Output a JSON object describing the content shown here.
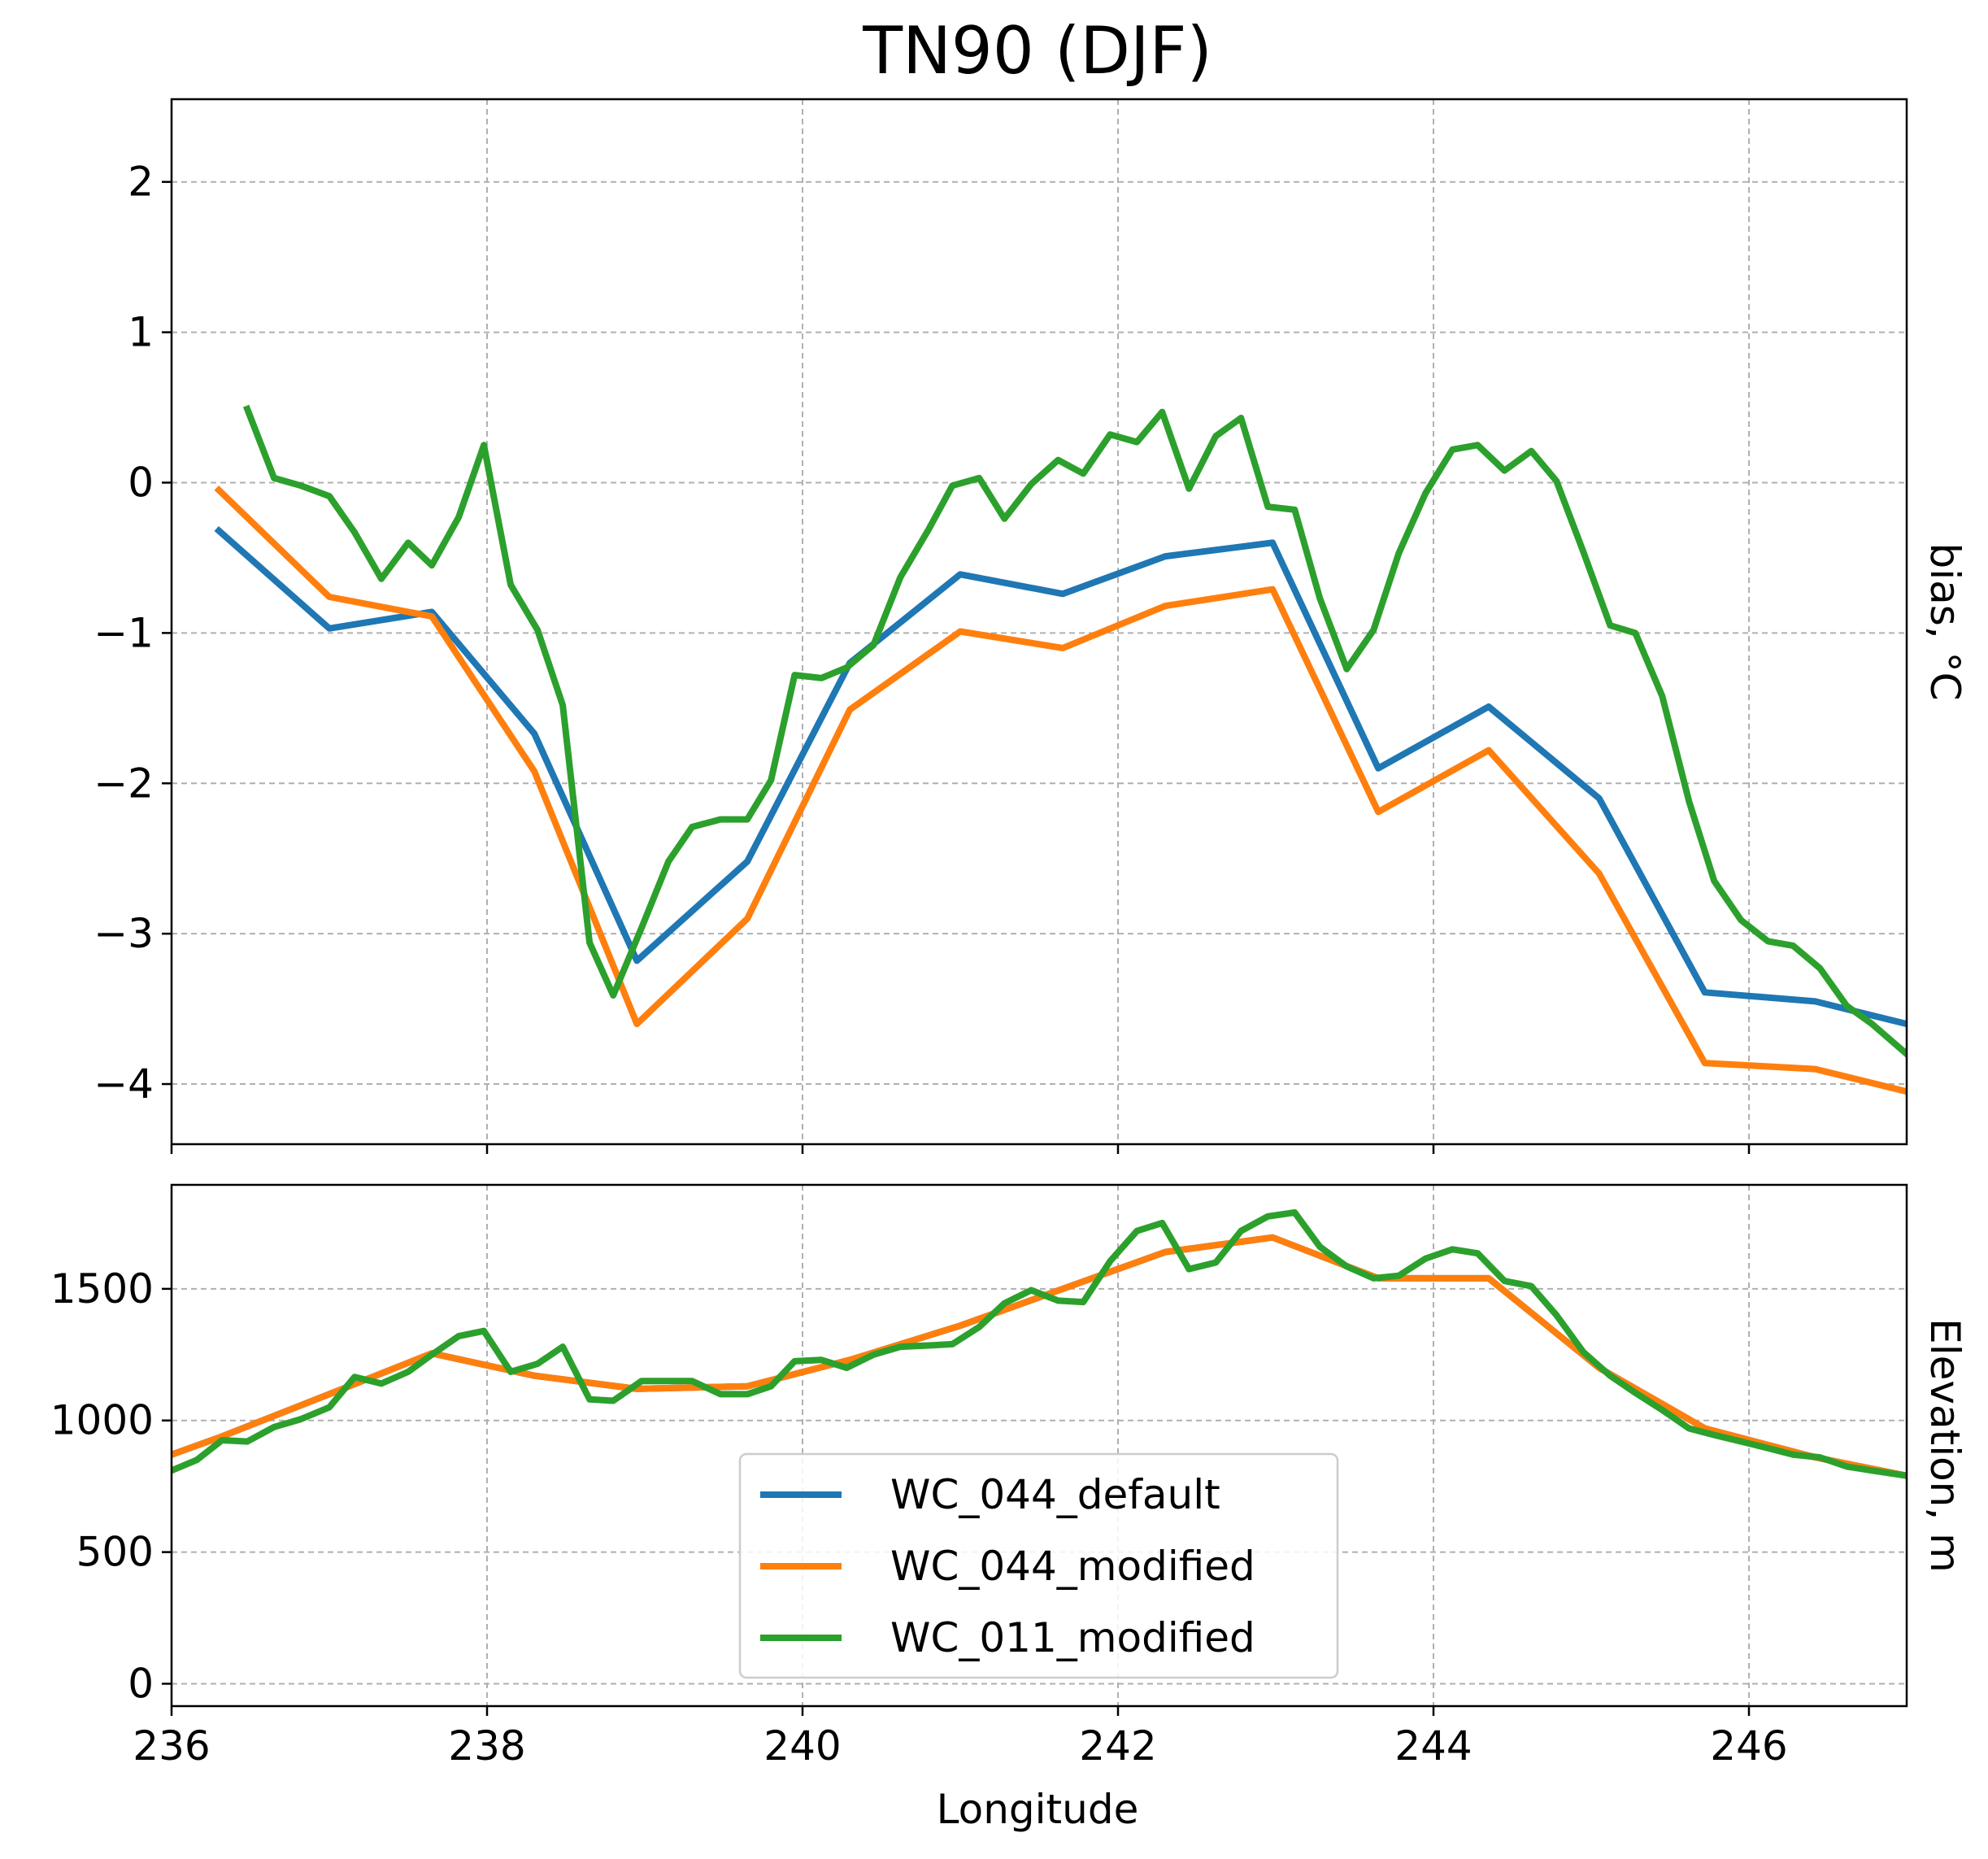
{
  "chart_data": {
    "type": "line",
    "title": "TN90 (DJF)",
    "xlabel": "Longitude",
    "xlim": [
      236,
      247
    ],
    "xticks": [
      236,
      238,
      240,
      242,
      244,
      246
    ],
    "grid": true,
    "legend_location": "lower-center",
    "series_style": [
      {
        "name": "WC_044_default",
        "color": "#1f77b4"
      },
      {
        "name": "WC_044_modified",
        "color": "#ff7f0e"
      },
      {
        "name": "WC_011_modified",
        "color": "#2ca02c"
      }
    ],
    "panels": [
      {
        "ylabel": "bias, °C",
        "ylim": [
          -4.4,
          2.55
        ],
        "yticks": [
          -4,
          -3,
          -2,
          -1,
          0,
          1,
          2
        ],
        "ytick_labels": [
          "−4",
          "−3",
          "−2",
          "−1",
          "0",
          "1",
          "2"
        ],
        "series": [
          {
            "name": "WC_044_default",
            "x": [
              236.3,
              237.0,
              237.65,
              238.3,
              238.95,
              239.65,
              240.3,
              241.0,
              241.65,
              242.3,
              242.98,
              243.65,
              244.35,
              245.05,
              245.72,
              246.42,
              247.0
            ],
            "y": [
              -0.32,
              -0.97,
              -0.86,
              -1.67,
              -3.18,
              -2.52,
              -1.2,
              -0.61,
              -0.74,
              -0.49,
              -0.4,
              -1.9,
              -1.49,
              -2.1,
              -3.39,
              -3.45,
              -3.6
            ]
          },
          {
            "name": "WC_044_modified",
            "x": [
              236.3,
              237.0,
              237.65,
              238.3,
              238.95,
              239.65,
              240.3,
              241.0,
              241.65,
              242.3,
              242.98,
              243.65,
              244.35,
              245.05,
              245.72,
              246.42,
              247.0
            ],
            "y": [
              -0.05,
              -0.76,
              -0.89,
              -1.92,
              -3.6,
              -2.9,
              -1.51,
              -0.99,
              -1.1,
              -0.82,
              -0.71,
              -2.19,
              -1.78,
              -2.6,
              -3.86,
              -3.9,
              -4.05
            ]
          },
          {
            "name": "WC_011_modified",
            "x": [
              236.48,
              236.65,
              236.82,
              237.0,
              237.16,
              237.33,
              237.5,
              237.65,
              237.82,
              237.98,
              238.15,
              238.32,
              238.48,
              238.65,
              238.8,
              238.98,
              239.15,
              239.3,
              239.48,
              239.65,
              239.8,
              239.95,
              240.12,
              240.28,
              240.45,
              240.62,
              240.8,
              240.95,
              241.12,
              241.28,
              241.45,
              241.62,
              241.78,
              241.95,
              242.12,
              242.28,
              242.45,
              242.62,
              242.78,
              242.95,
              243.12,
              243.28,
              243.45,
              243.62,
              243.78,
              243.95,
              244.12,
              244.28,
              244.45,
              244.62,
              244.78,
              244.95,
              245.12,
              245.28,
              245.45,
              245.62,
              245.78,
              245.95,
              246.12,
              246.28,
              246.45,
              246.62,
              246.78,
              247.0
            ],
            "y": [
              0.49,
              0.03,
              -0.02,
              -0.09,
              -0.33,
              -0.64,
              -0.4,
              -0.55,
              -0.23,
              0.25,
              -0.68,
              -0.98,
              -1.48,
              -3.06,
              -3.41,
              -2.96,
              -2.52,
              -2.29,
              -2.24,
              -2.24,
              -1.98,
              -1.28,
              -1.3,
              -1.23,
              -1.08,
              -0.63,
              -0.31,
              -0.02,
              0.03,
              -0.24,
              -0.01,
              0.15,
              0.06,
              0.32,
              0.27,
              0.47,
              -0.04,
              0.31,
              0.43,
              -0.16,
              -0.18,
              -0.77,
              -1.24,
              -0.98,
              -0.47,
              -0.07,
              0.22,
              0.25,
              0.08,
              0.21,
              0.01,
              -0.46,
              -0.95,
              -1.0,
              -1.42,
              -2.12,
              -2.65,
              -2.91,
              -3.05,
              -3.08,
              -3.23,
              -3.48,
              -3.6,
              -3.8
            ]
          }
        ]
      },
      {
        "ylabel": "Elevation, m",
        "ylim": [
          -85,
          1895
        ],
        "yticks": [
          0,
          500,
          1000,
          1500
        ],
        "ytick_labels": [
          "0",
          "500",
          "1000",
          "1500"
        ],
        "series": [
          {
            "name": "WC_044_default",
            "x": [
              236.0,
              236.3,
              237.0,
              237.65,
              238.3,
              238.95,
              239.65,
              240.3,
              241.0,
              241.65,
              242.3,
              242.98,
              243.65,
              244.35,
              245.05,
              245.72,
              246.42,
              247.0
            ],
            "y": [
              870,
              935,
              1100,
              1255,
              1170,
              1120,
              1130,
              1230,
              1360,
              1500,
              1640,
              1695,
              1540,
              1540,
              1200,
              970,
              860,
              790
            ]
          },
          {
            "name": "WC_044_modified",
            "x": [
              236.0,
              236.3,
              237.0,
              237.65,
              238.3,
              238.95,
              239.65,
              240.3,
              241.0,
              241.65,
              242.3,
              242.98,
              243.65,
              244.35,
              245.05,
              245.72,
              246.42,
              247.0
            ],
            "y": [
              870,
              935,
              1100,
              1255,
              1170,
              1120,
              1130,
              1230,
              1360,
              1500,
              1640,
              1695,
              1540,
              1540,
              1200,
              970,
              860,
              790
            ]
          },
          {
            "name": "WC_011_modified",
            "x": [
              236.0,
              236.16,
              236.32,
              236.48,
              236.65,
              236.82,
              237.0,
              237.16,
              237.33,
              237.5,
              237.65,
              237.82,
              237.98,
              238.15,
              238.32,
              238.48,
              238.65,
              238.8,
              238.98,
              239.15,
              239.3,
              239.48,
              239.65,
              239.8,
              239.95,
              240.12,
              240.28,
              240.45,
              240.62,
              240.8,
              240.95,
              241.12,
              241.28,
              241.45,
              241.62,
              241.78,
              241.95,
              242.12,
              242.28,
              242.45,
              242.62,
              242.78,
              242.95,
              243.12,
              243.28,
              243.45,
              243.62,
              243.78,
              243.95,
              244.12,
              244.28,
              244.45,
              244.62,
              244.78,
              244.95,
              245.12,
              245.28,
              245.45,
              245.62,
              245.78,
              245.95,
              246.12,
              246.28,
              246.45,
              246.62,
              246.78,
              247.0
            ],
            "y": [
              810,
              850,
              925,
              920,
              975,
              1005,
              1050,
              1165,
              1140,
              1185,
              1250,
              1320,
              1340,
              1185,
              1215,
              1280,
              1080,
              1075,
              1150,
              1150,
              1150,
              1100,
              1100,
              1130,
              1225,
              1230,
              1200,
              1250,
              1280,
              1285,
              1290,
              1355,
              1445,
              1495,
              1455,
              1450,
              1605,
              1720,
              1750,
              1575,
              1600,
              1720,
              1775,
              1790,
              1660,
              1585,
              1540,
              1550,
              1615,
              1650,
              1635,
              1530,
              1510,
              1400,
              1260,
              1170,
              1105,
              1040,
              970,
              945,
              920,
              895,
              870,
              860,
              825,
              810,
              790
            ]
          }
        ]
      }
    ]
  }
}
